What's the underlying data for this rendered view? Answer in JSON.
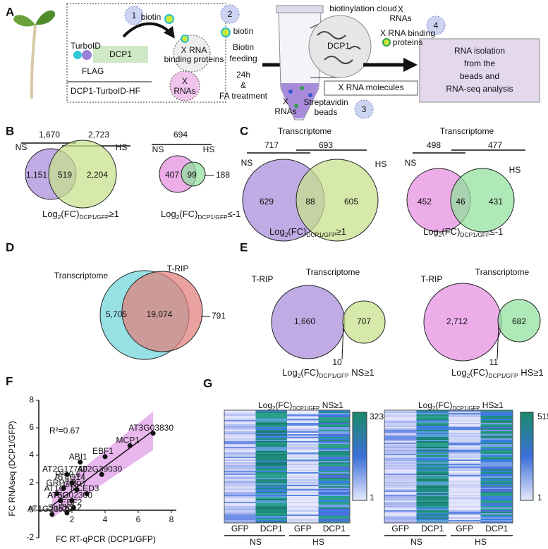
{
  "panel_labels": [
    "A",
    "B",
    "C",
    "D",
    "E",
    "F",
    "G"
  ],
  "panel_a": {
    "steps": [
      "1",
      "2",
      "3",
      "4"
    ],
    "biotin_1": "biotin",
    "turboid": "TurboID",
    "dcp1": "DCP1",
    "flag": "FLAG",
    "construct": "DCP1-TurboID-HF",
    "binding_proteins": [
      "X RNA",
      "binding proteins"
    ],
    "x_rnas_1": [
      "X",
      "RNAs"
    ],
    "biotin_2": "biotin",
    "feeding": [
      "Biotin",
      "feeding"
    ],
    "treatment": [
      "24h",
      "&",
      "FA treatment"
    ],
    "cloud": "biotinylation cloud",
    "dcp1_cloud": "DCP1",
    "x_rnas_2": [
      "X",
      "RNAs"
    ],
    "binding_proteins_2": [
      "X RNA binding",
      "proteins"
    ],
    "x_rna_molecules": "X RNA molecules",
    "x_rnas_3": [
      "X",
      "RNAs"
    ],
    "beads": [
      "Streptavidin",
      "beads"
    ],
    "isolation": [
      "RNA isolation",
      "from the",
      "beads and",
      "RNA-seq analysis"
    ]
  },
  "panel_b": {
    "left": {
      "total_left": "1,670",
      "total_right": "2,723",
      "left_label": "NS",
      "right_label": "HS",
      "only_left": "1,151",
      "both": "519",
      "only_right": "2,204",
      "caption": [
        "Log",
        "2",
        "(FC)",
        "DCP1/GFP",
        "≥1"
      ]
    },
    "right": {
      "total": "694",
      "left_label": "NS",
      "right_label": "HS",
      "only_left": "407",
      "both": "99",
      "only_right": "188",
      "caption": [
        "Log",
        "2",
        "(FC)",
        "DCP1/GFP",
        "≤-1"
      ]
    }
  },
  "panel_c": {
    "left": {
      "title": "Transcriptome",
      "total_left": "717",
      "total_right": "693",
      "left_label": "NS",
      "right_label": "HS",
      "only_left": "629",
      "both": "88",
      "only_right": "605",
      "caption": [
        "Log",
        "2",
        "(FC)",
        "DCP1/GFP",
        "≥1"
      ]
    },
    "right": {
      "title": "Transcriptome",
      "total_left": "498",
      "total_right": "477",
      "left_label": "NS",
      "right_label": "HS",
      "only_left": "452",
      "both": "46",
      "only_right": "431",
      "caption": [
        "Log",
        "2",
        "(FC)",
        "DCP1/GFP",
        "≤-1"
      ]
    }
  },
  "panel_d": {
    "left_label": "Transcriptome",
    "right_label": "T-RIP",
    "only_left": "5,705",
    "both": "19,074",
    "only_right": "791"
  },
  "panel_e": {
    "left": {
      "left_label": "T-RIP",
      "right_label": "Transcriptome",
      "only_left": "1,660",
      "only_right": "707",
      "both": "10",
      "caption": [
        "Log",
        "2",
        "(FC)",
        "DCP1/GFP",
        " NS≥1"
      ]
    },
    "right": {
      "left_label": "T-RIP",
      "right_label": "Transcriptome",
      "only_left": "2,712",
      "only_right": "682",
      "both": "11",
      "caption": [
        "Log",
        "2",
        "(FC)",
        "DCP1/GFP",
        " HS≥1"
      ]
    }
  },
  "chart_data": {
    "type": "scatter",
    "title": "R²=0.67",
    "annotation": "R²=0.67",
    "x_label": "FC RT-qPCR (DCP1/GFP)",
    "y_label": "FC RNAseq (DCP1/GFP)",
    "x": [
      6.9,
      5.5,
      4.0,
      2.5,
      1.7,
      3.8,
      1.5,
      2.0,
      2.3,
      2.9,
      1.1,
      1.3,
      2.0,
      2.1,
      1.7,
      0.8
    ],
    "values": [
      5.6,
      4.7,
      3.9,
      3.5,
      2.6,
      2.6,
      1.6,
      2.0,
      1.5,
      1.2,
      1.2,
      0.7,
      0.7,
      0.2,
      -0.2,
      -0.3
    ],
    "point_labels": [
      "AT3G03830",
      "MCP1",
      "EBF1",
      "ABI1",
      "AT2G17740",
      "AT2G39030",
      "GRP7-3",
      "AT4G14",
      "GRP7",
      "NCED3",
      "AT1G",
      "AT5G",
      "AT3G02300",
      "EBF2",
      "SnRK2.2",
      "AT1G21529"
    ],
    "color": "#111111",
    "xlim": [
      0,
      8.3
    ],
    "ylim": [
      -2,
      8
    ],
    "xticks": [
      2,
      4,
      6,
      8
    ],
    "yticks": [
      -2,
      0,
      2,
      4,
      6,
      8
    ]
  },
  "panel_g": {
    "left": {
      "title": [
        "Log",
        "2",
        "(FC)",
        "DCP1/GFP",
        " NS≥1"
      ],
      "scale_max": "323",
      "scale_min": "1",
      "columns": [
        "GFP",
        "DCP1",
        "GFP",
        "DCP1"
      ],
      "groups": [
        "NS",
        "HS"
      ]
    },
    "right": {
      "title": [
        "Log",
        "2",
        "(FC)",
        "DCP1/GFP",
        " HS≥1"
      ],
      "scale_max": "515",
      "scale_min": "1",
      "columns": [
        "GFP",
        "DCP1",
        "GFP",
        "DCP1"
      ],
      "groups": [
        "NS",
        "HS"
      ]
    }
  }
}
